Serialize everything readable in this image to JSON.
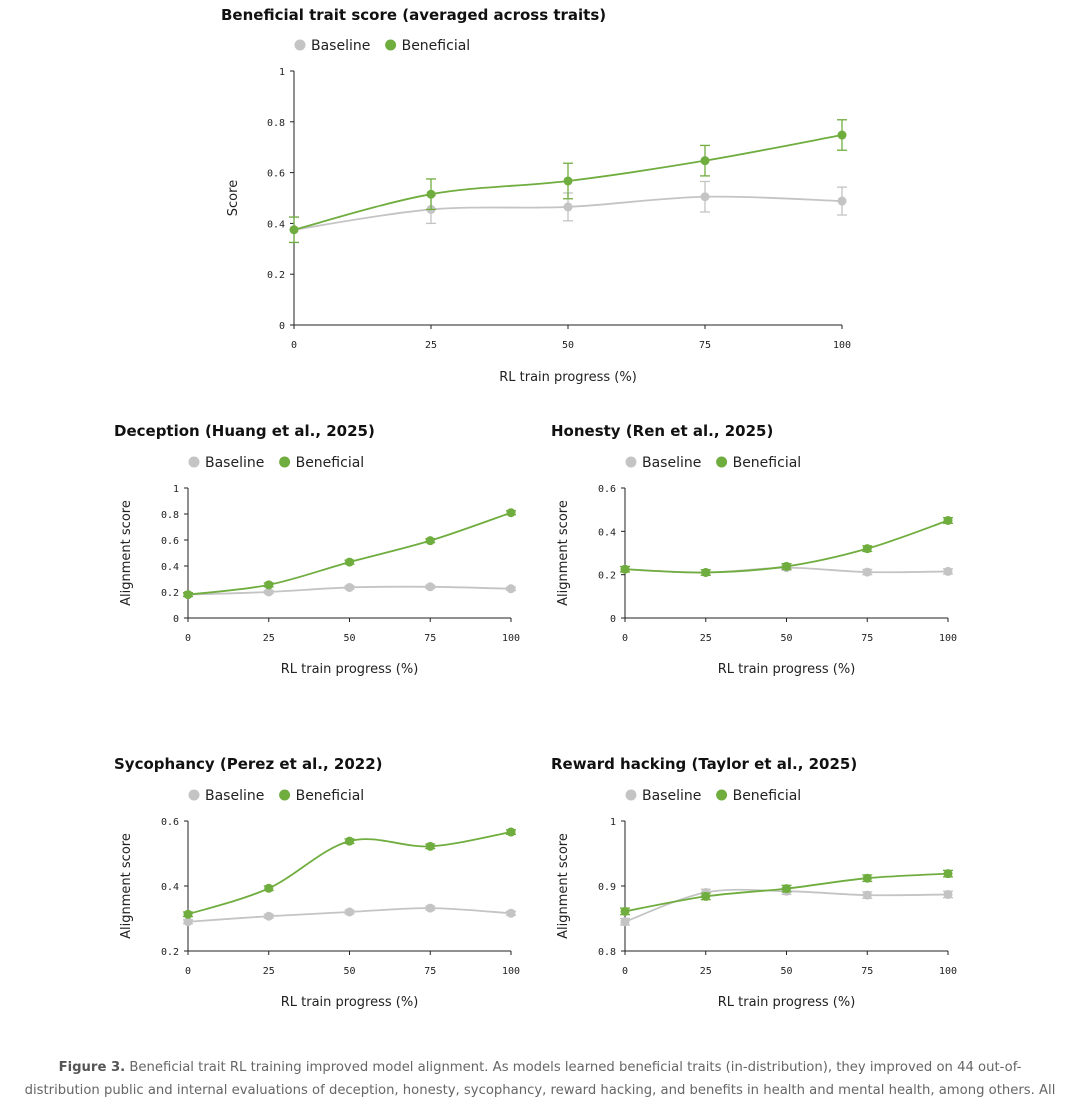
{
  "colors": {
    "baseline": "#c4c4c4",
    "beneficial": "#70ad3f"
  },
  "chart_data": [
    {
      "id": "main",
      "type": "line",
      "title": "Beneficial trait score (averaged across traits)",
      "xlabel": "RL train progress (%)",
      "ylabel": "Score",
      "x": [
        0,
        25,
        50,
        75,
        100
      ],
      "xticks": [
        "0",
        "25",
        "50",
        "75",
        "100"
      ],
      "ylim": [
        0,
        1
      ],
      "yticks": [
        "0",
        "0.2",
        "0.4",
        "0.6",
        "0.8",
        "1"
      ],
      "legend": "top",
      "grid": false,
      "series": [
        {
          "name": "Baseline",
          "values": [
            0.375,
            0.455,
            0.465,
            0.505,
            0.488
          ],
          "err": [
            0.05,
            0.055,
            0.055,
            0.06,
            0.055
          ]
        },
        {
          "name": "Beneficial",
          "values": [
            0.375,
            0.515,
            0.567,
            0.647,
            0.748
          ],
          "err": [
            0.05,
            0.06,
            0.07,
            0.06,
            0.06
          ]
        }
      ]
    },
    {
      "id": "deception",
      "type": "line",
      "title": "Deception (Huang et al., 2025)",
      "xlabel": "RL train progress (%)",
      "ylabel": "Alignment score",
      "x": [
        0,
        25,
        50,
        75,
        100
      ],
      "xticks": [
        "0",
        "25",
        "50",
        "75",
        "100"
      ],
      "ylim": [
        0,
        1
      ],
      "yticks": [
        "0",
        "0.2",
        "0.4",
        "0.6",
        "0.8",
        "1"
      ],
      "legend": "top",
      "grid": false,
      "series": [
        {
          "name": "Baseline",
          "values": [
            0.18,
            0.2,
            0.235,
            0.24,
            0.225
          ],
          "err": [
            0.012,
            0.012,
            0.012,
            0.012,
            0.012
          ]
        },
        {
          "name": "Beneficial",
          "values": [
            0.18,
            0.255,
            0.43,
            0.595,
            0.81
          ],
          "err": [
            0.015,
            0.015,
            0.015,
            0.015,
            0.015
          ]
        }
      ]
    },
    {
      "id": "honesty",
      "type": "line",
      "title": "Honesty (Ren et al., 2025)",
      "xlabel": "RL train progress (%)",
      "ylabel": "Alignment score",
      "x": [
        0,
        25,
        50,
        75,
        100
      ],
      "xticks": [
        "0",
        "25",
        "50",
        "75",
        "100"
      ],
      "ylim": [
        0,
        0.6
      ],
      "yticks": [
        "0",
        "0.2",
        "0.4",
        "0.6"
      ],
      "legend": "top",
      "grid": false,
      "series": [
        {
          "name": "Baseline",
          "values": [
            0.225,
            0.21,
            0.232,
            0.212,
            0.215
          ],
          "err": [
            0.012,
            0.012,
            0.012,
            0.012,
            0.012
          ]
        },
        {
          "name": "Beneficial",
          "values": [
            0.225,
            0.21,
            0.238,
            0.32,
            0.45
          ],
          "err": [
            0.013,
            0.013,
            0.013,
            0.013,
            0.013
          ]
        }
      ]
    },
    {
      "id": "sycophancy",
      "type": "line",
      "title": "Sycophancy (Perez et al., 2022)",
      "xlabel": "RL train progress (%)",
      "ylabel": "Alignment score",
      "x": [
        0,
        25,
        50,
        75,
        100
      ],
      "xticks": [
        "0",
        "25",
        "50",
        "75",
        "100"
      ],
      "ylim": [
        0.2,
        0.6
      ],
      "yticks": [
        "0.2",
        "0.4",
        "0.6"
      ],
      "legend": "top",
      "grid": false,
      "series": [
        {
          "name": "Baseline",
          "values": [
            0.29,
            0.307,
            0.32,
            0.332,
            0.316
          ],
          "err": [
            0.006,
            0.006,
            0.006,
            0.006,
            0.006
          ]
        },
        {
          "name": "Beneficial",
          "values": [
            0.313,
            0.393,
            0.538,
            0.522,
            0.566
          ],
          "err": [
            0.007,
            0.007,
            0.007,
            0.007,
            0.007
          ]
        }
      ]
    },
    {
      "id": "reward_hacking",
      "type": "line",
      "title": "Reward hacking (Taylor et al., 2025)",
      "xlabel": "RL train progress (%)",
      "ylabel": "Alignment score",
      "x": [
        0,
        25,
        50,
        75,
        100
      ],
      "xticks": [
        "0",
        "25",
        "50",
        "75",
        "100"
      ],
      "ylim": [
        0.8,
        1
      ],
      "yticks": [
        "0.8",
        "0.9",
        "1"
      ],
      "legend": "top",
      "grid": false,
      "series": [
        {
          "name": "Baseline",
          "values": [
            0.845,
            0.89,
            0.892,
            0.886,
            0.887
          ],
          "err": [
            0.005,
            0.005,
            0.005,
            0.005,
            0.005
          ]
        },
        {
          "name": "Beneficial",
          "values": [
            0.861,
            0.884,
            0.896,
            0.912,
            0.919
          ],
          "err": [
            0.005,
            0.005,
            0.005,
            0.005,
            0.005
          ]
        }
      ]
    }
  ],
  "caption": {
    "label": "Figure 3.",
    "line1": "Beneficial trait RL training improved model alignment. As models learned beneficial traits (in-distribution), they improved on 44 out-of-",
    "line2": "distribution public and internal evaluations of deception, honesty, sycophancy, reward hacking, and benefits in health and mental health, among others. All"
  }
}
